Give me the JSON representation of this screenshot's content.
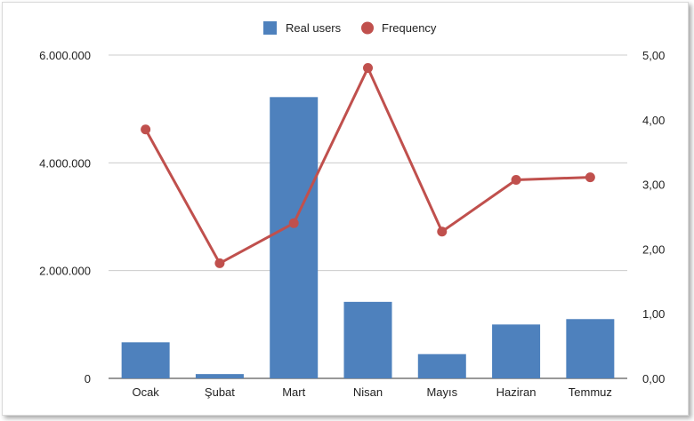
{
  "chart_data": {
    "type": "bar",
    "categories": [
      "Ocak",
      "Şubat",
      "Mart",
      "Nisan",
      "Mayıs",
      "Haziran",
      "Temmuz"
    ],
    "series": [
      {
        "name": "Real users",
        "type": "bar",
        "axis": "left",
        "color": "#4e81bd",
        "values": [
          670000,
          80000,
          5220000,
          1420000,
          450000,
          1000000,
          1100000
        ]
      },
      {
        "name": "Frequency",
        "type": "line",
        "axis": "right",
        "color": "#c0504d",
        "values": [
          3.85,
          1.78,
          2.4,
          4.8,
          2.27,
          3.07,
          3.11
        ]
      }
    ],
    "y_left": {
      "ylim": [
        0,
        6000000
      ],
      "ticks": [
        "0",
        "2.000.000",
        "4.000.000",
        "6.000.000"
      ],
      "tick_values": [
        0,
        2000000,
        4000000,
        6000000
      ]
    },
    "y_right": {
      "ylim": [
        0,
        5
      ],
      "ticks": [
        "0,00",
        "1,00",
        "2,00",
        "3,00",
        "4,00",
        "5,00"
      ],
      "tick_values": [
        0,
        1,
        2,
        3,
        4,
        5
      ]
    },
    "grid": true,
    "legend": {
      "position": "top-center",
      "items": [
        "Real users",
        "Frequency"
      ]
    }
  }
}
